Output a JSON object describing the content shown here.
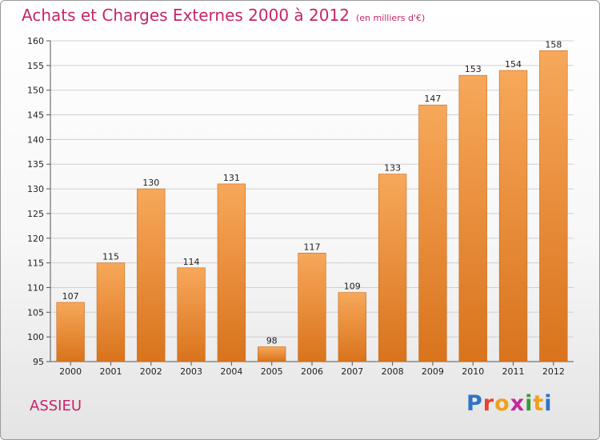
{
  "header": {
    "title": "Achats et Charges Externes 2000 à 2012",
    "subtitle": "(en milliers d'€)"
  },
  "footer": {
    "commune": "ASSIEU",
    "logo_text": "Proxiti"
  },
  "colors": {
    "title": "#c5256a",
    "bar_light": "#f7a85a",
    "bar_dark": "#d9731c",
    "grid": "#d0d0d0"
  },
  "chart_data": {
    "type": "bar",
    "title": "Achats et Charges Externes 2000 à 2012",
    "subtitle": "(en milliers d'€)",
    "xlabel": "",
    "ylabel": "",
    "categories": [
      "2000",
      "2001",
      "2002",
      "2003",
      "2004",
      "2005",
      "2006",
      "2007",
      "2008",
      "2009",
      "2010",
      "2011",
      "2012"
    ],
    "values": [
      107,
      115,
      130,
      114,
      131,
      98,
      117,
      109,
      133,
      147,
      153,
      154,
      158
    ],
    "ylim": [
      95,
      160
    ],
    "yticks": [
      95,
      100,
      105,
      110,
      115,
      120,
      125,
      130,
      135,
      140,
      145,
      150,
      155,
      160
    ],
    "grid": true,
    "legend": "none"
  }
}
